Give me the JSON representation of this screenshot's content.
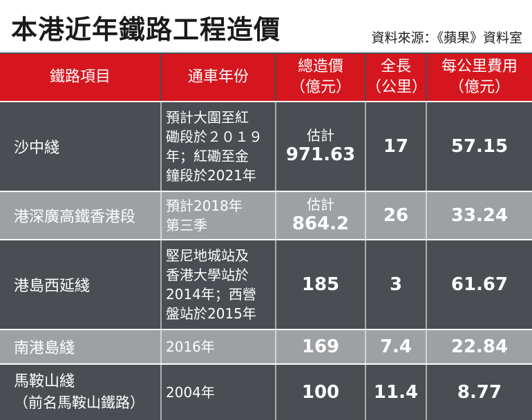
{
  "title": "本港近年鐵路工程造價",
  "source": "資料來源：《蘋果》資料室",
  "headers": {
    "project": "鐵路項目",
    "year": "通車年份",
    "cost_line1": "總造價",
    "cost_line2": "（億元）",
    "length_line1": "全長",
    "length_line2": "（公里）",
    "per_km_line1": "每公里費用",
    "per_km_line2": "（億元）"
  },
  "rows": [
    {
      "name": "沙中綫",
      "year_lines": [
        "預計大圍至紅",
        "磡段於２０１９",
        "年；紅磡至金",
        "鐘段於2021年"
      ],
      "cost_prefix": "估計",
      "cost": "971.63",
      "length": "17",
      "per_km": "57.15"
    },
    {
      "name": "港深廣高鐵香港段",
      "year_lines": [
        "預計2018年",
        "第三季"
      ],
      "cost_prefix": "估計",
      "cost": "864.2",
      "length": "26",
      "per_km": "33.24"
    },
    {
      "name": "港島西延綫",
      "year_lines": [
        "堅尼地城站及",
        "香港大學站於",
        "2014年；西營",
        "盤站於2015年"
      ],
      "cost_prefix": "",
      "cost": "185",
      "length": "3",
      "per_km": "61.67"
    },
    {
      "name": "南港島綫",
      "year_lines": [
        "2016年"
      ],
      "cost_prefix": "",
      "cost": "169",
      "length": "7.4",
      "per_km": "22.84"
    },
    {
      "name": "馬鞍山綫",
      "name_sub": "（前名馬鞍山鐵路）",
      "year_lines": [
        "2004年"
      ],
      "cost_prefix": "",
      "cost": "100",
      "length": "11.4",
      "per_km": "8.77"
    }
  ],
  "colors": {
    "header_red": "#d5161e",
    "dark_row": "#4a4d51",
    "light_row": "#9ea1a4"
  }
}
